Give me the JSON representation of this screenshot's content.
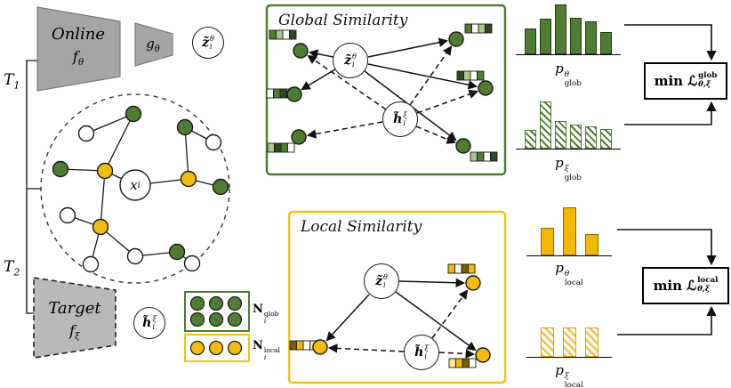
{
  "colors": {
    "green": "#4e7d32",
    "light_green": "#a9c98a",
    "dark_green": "#2e4a1c",
    "yellow": "#f2bb0e",
    "dark_yellow": "#7a5c00",
    "gray": "#a5a5a5"
  },
  "labels": {
    "t1": {
      "base": "T",
      "sub": "1"
    },
    "t2": {
      "base": "T",
      "sub": "2"
    },
    "online": {
      "title": "Online",
      "fn_base": "f",
      "fn_sub": "θ"
    },
    "projector": {
      "base": "g",
      "sub": "θ"
    },
    "target": {
      "title": "Target",
      "fn_base": "f",
      "fn_sub": "ξ"
    },
    "z": {
      "base": "z̃",
      "sup": "θ",
      "sub": "i"
    },
    "h": {
      "base": "h̃",
      "sup": "ξ",
      "sub": "i"
    },
    "x": {
      "base": "x",
      "sub": "i"
    },
    "legend_glob": {
      "base": "N",
      "sup": "glob",
      "sub": "i"
    },
    "legend_local": {
      "base": "N",
      "sup": "local",
      "sub": "i"
    }
  },
  "boxes": {
    "global": {
      "title": "Global Similarity"
    },
    "local": {
      "title": "Local Similarity"
    }
  },
  "charts": {
    "p_glob_theta": {
      "label": {
        "base": "p",
        "sup": "θ",
        "sub": "glob"
      },
      "values": [
        0.52,
        0.72,
        1,
        0.74,
        0.66,
        0.44
      ]
    },
    "p_glob_xi": {
      "label": {
        "base": "p",
        "sup": "ξ",
        "sub": "glob"
      },
      "values": [
        0.38,
        0.95,
        0.56,
        0.48,
        0.44,
        0.4
      ]
    },
    "p_local_theta": {
      "label": {
        "base": "p",
        "sup": "θ",
        "sub": "local"
      },
      "values": [
        0.58,
        1,
        0.44
      ]
    },
    "p_local_xi": {
      "label": {
        "base": "p",
        "sup": "ξ",
        "sub": "local"
      },
      "values": [
        0.62,
        0.62,
        0.62
      ]
    }
  },
  "loss": {
    "glob": {
      "min_label": "min",
      "loss_symbol": "ℒ",
      "sup": "glob",
      "sub": "θ,ξ"
    },
    "local": {
      "min_label": "min",
      "loss_symbol": "ℒ",
      "sup": "local",
      "sub": "θ,ξ"
    }
  }
}
